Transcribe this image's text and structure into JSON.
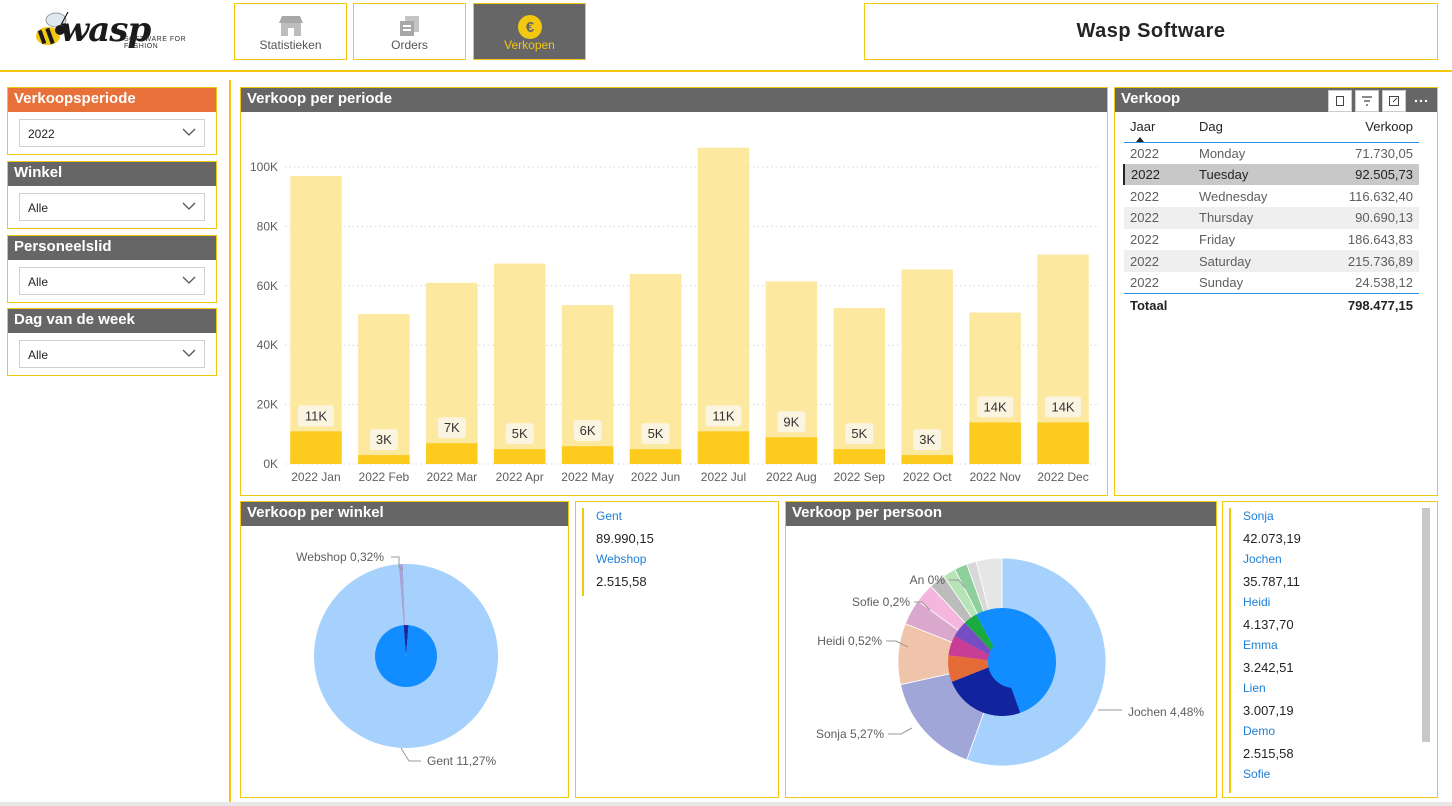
{
  "header": {
    "logo_text": "wasp",
    "logo_tagline": "SOFTWARE FOR FASHION",
    "nav": [
      {
        "label": "Statistieken",
        "icon": "store-icon",
        "active": false
      },
      {
        "label": "Orders",
        "icon": "orders-icon",
        "active": false
      },
      {
        "label": "Verkopen",
        "icon": "euro-icon",
        "active": true
      }
    ],
    "title": "Wasp Software"
  },
  "slicers": [
    {
      "label": "Verkoopsperiode",
      "value": "2022",
      "accent": "#e8713a"
    },
    {
      "label": "Winkel",
      "value": "Alle"
    },
    {
      "label": "Personeelslid",
      "value": "Alle"
    },
    {
      "label": "Dag van de week",
      "value": "Alle"
    }
  ],
  "period_chart": {
    "title": "Verkoop per periode",
    "chart_data": {
      "type": "bar",
      "categories": [
        "2022 Jan",
        "2022 Feb",
        "2022 Mar",
        "2022 Apr",
        "2022 May",
        "2022 Jun",
        "2022 Jul",
        "2022 Aug",
        "2022 Sep",
        "2022 Oct",
        "2022 Nov",
        "2022 Dec"
      ],
      "series": [
        {
          "values": [
            97000,
            50500,
            61000,
            67500,
            53500,
            64000,
            106500,
            61500,
            52500,
            65500,
            51000,
            70500
          ],
          "color": "#fde8a0"
        },
        {
          "values": [
            11000,
            3000,
            7000,
            5000,
            6000,
            5000,
            11000,
            9000,
            5000,
            3000,
            14000,
            14000
          ],
          "color": "#fdca1e"
        }
      ],
      "data_labels": [
        "11K",
        "3K",
        "7K",
        "5K",
        "6K",
        "5K",
        "11K",
        "9K",
        "5K",
        "3K",
        "14K",
        "14K"
      ],
      "yticks": [
        "0K",
        "20K",
        "40K",
        "60K",
        "80K",
        "100K"
      ],
      "ylim": [
        0,
        110000
      ],
      "grid": true
    }
  },
  "verkoop_table": {
    "title": "Verkoop",
    "columns": [
      "Jaar",
      "Dag",
      "Verkoop"
    ],
    "rows": [
      [
        "2022",
        "Monday",
        "71.730,05"
      ],
      [
        "2022",
        "Tuesday",
        "92.505,73"
      ],
      [
        "2022",
        "Wednesday",
        "116.632,40"
      ],
      [
        "2022",
        "Thursday",
        "90.690,13"
      ],
      [
        "2022",
        "Friday",
        "186.643,83"
      ],
      [
        "2022",
        "Saturday",
        "215.736,89"
      ],
      [
        "2022",
        "Sunday",
        "24.538,12"
      ]
    ],
    "selected_row": 1,
    "total_label": "Totaal",
    "total_value": "798.477,15"
  },
  "winkel_chart": {
    "title": "Verkoop per winkel",
    "chart_data": {
      "type": "pie",
      "slices": [
        {
          "label": "Webshop 0,32%",
          "share": 0.0074,
          "color": "#a7a3d6"
        },
        {
          "label": "Gent 11,27%",
          "share": 0.9926,
          "color": "#a5d1fc"
        }
      ],
      "inner": [
        {
          "share": 0.026,
          "color": "#1a2a9c"
        },
        {
          "share": 0.974,
          "color": "#118dff"
        }
      ]
    }
  },
  "winkel_cards": [
    {
      "name": "Gent",
      "value": "89.990,15"
    },
    {
      "name": "Webshop",
      "value": "2.515,58"
    }
  ],
  "persoon_chart": {
    "title": "Verkoop per persoon",
    "chart_data": {
      "type": "pie",
      "slices": [
        {
          "label": "Jochen 4,48%",
          "share": 0.555,
          "color": "#a5d1fc"
        },
        {
          "label": "Sonja 5,27%",
          "share": 0.16,
          "color": "#a0a6d8"
        },
        {
          "label": "Heidi 0,52%",
          "share": 0.095,
          "color": "#f0c4aa"
        },
        {
          "label": "",
          "share": 0.04,
          "color": "#d9a8cc"
        },
        {
          "label": "Sofie 0,2%",
          "share": 0.03,
          "color": "#f4b6dc"
        },
        {
          "label": "",
          "share": 0.025,
          "color": "#bcbcbc"
        },
        {
          "label": "",
          "share": 0.02,
          "color": "#b7e4b7"
        },
        {
          "label": "An 0%",
          "share": 0.02,
          "color": "#8fcf9c"
        },
        {
          "label": "",
          "share": 0.015,
          "color": "#d8d8d8"
        },
        {
          "label": "",
          "share": 0.04,
          "color": "#e6e6e6"
        }
      ],
      "inner": [
        {
          "share": 0.445,
          "color": "#118dff"
        },
        {
          "share": 0.245,
          "color": "#12239e"
        },
        {
          "share": 0.08,
          "color": "#e66c37"
        },
        {
          "share": 0.06,
          "color": "#c83d95"
        },
        {
          "share": 0.05,
          "color": "#744ec2"
        },
        {
          "share": 0.04,
          "color": "#1aab40"
        },
        {
          "share": 0.08,
          "color": "#118dff"
        }
      ]
    }
  },
  "persoon_cards": [
    {
      "name": "Sonja",
      "value": "42.073,19"
    },
    {
      "name": "Jochen",
      "value": "35.787,11"
    },
    {
      "name": "Heidi",
      "value": "4.137,70"
    },
    {
      "name": "Emma",
      "value": "3.242,51"
    },
    {
      "name": "Lien",
      "value": "3.007,19"
    },
    {
      "name": "Demo",
      "value": "2.515,58"
    },
    {
      "name": "Sofie",
      "value": ""
    }
  ]
}
